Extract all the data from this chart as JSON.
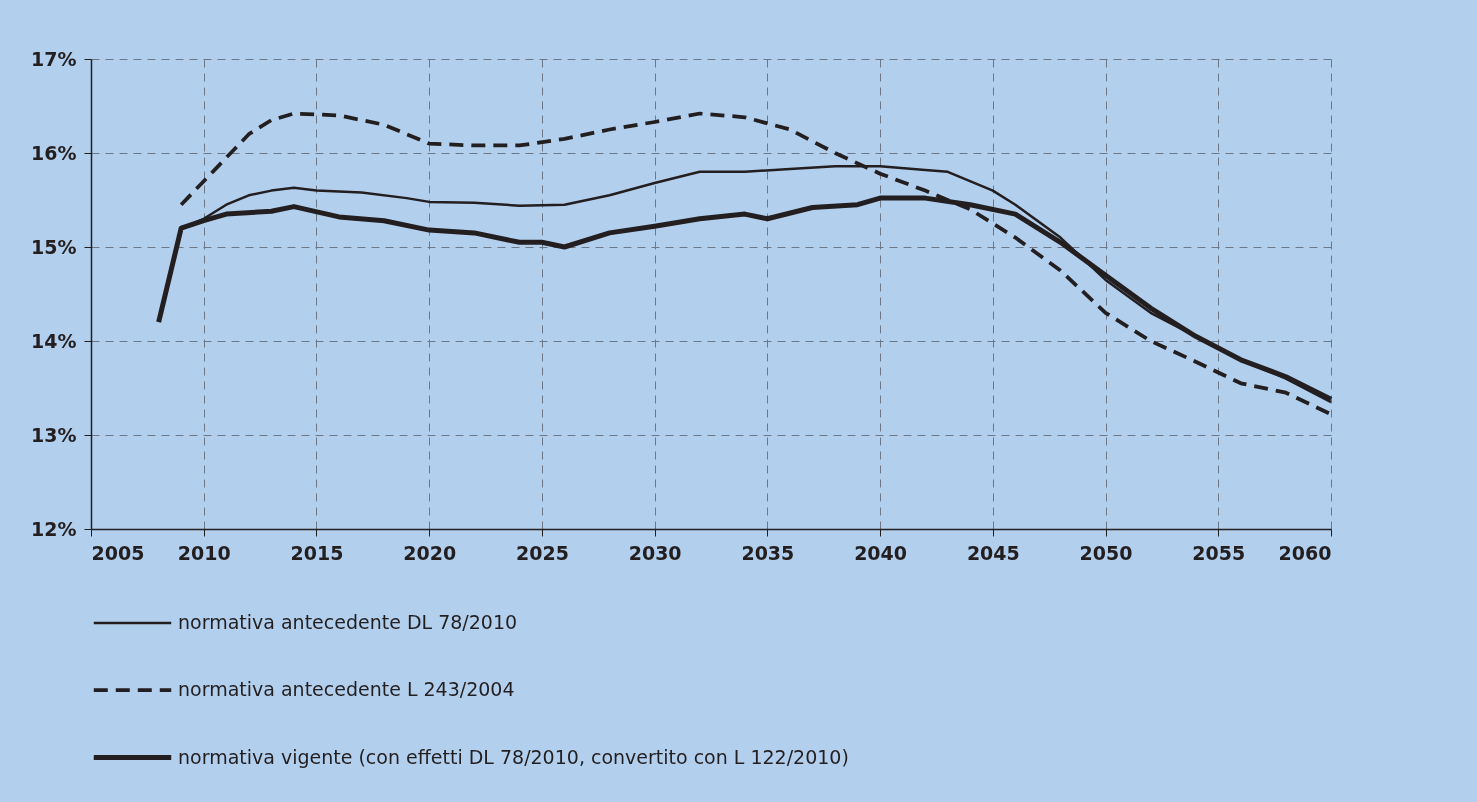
{
  "chart_data": {
    "type": "line",
    "xlim": [
      2005,
      2060
    ],
    "xticks": [
      2005,
      2010,
      2015,
      2020,
      2025,
      2030,
      2035,
      2040,
      2045,
      2050,
      2055,
      2060
    ],
    "ylim": [
      12,
      17
    ],
    "yticks": [
      {
        "value": 12,
        "label": "12%"
      },
      {
        "value": 13,
        "label": "13%"
      },
      {
        "value": 14,
        "label": "14%"
      },
      {
        "value": 15,
        "label": "15%"
      },
      {
        "value": 16,
        "label": "16%"
      },
      {
        "value": 17,
        "label": "17%"
      }
    ],
    "grid": true,
    "legend": "bottom",
    "marker": "none",
    "series": [
      {
        "name": "normativa antecedente DL 78/2010",
        "color": "#231f20",
        "line_style": "solid",
        "x": [
          2009,
          2010,
          2011,
          2012,
          2013,
          2014,
          2015,
          2017,
          2019,
          2020,
          2022,
          2024,
          2026,
          2028,
          2030,
          2032,
          2034,
          2036,
          2038,
          2040,
          2042,
          2043,
          2045,
          2046,
          2048,
          2050,
          2052,
          2054,
          2056,
          2058,
          2060
        ],
        "values": [
          15.2,
          15.3,
          15.45,
          15.55,
          15.6,
          15.63,
          15.6,
          15.58,
          15.52,
          15.48,
          15.47,
          15.44,
          15.45,
          15.55,
          15.68,
          15.8,
          15.8,
          15.83,
          15.86,
          15.86,
          15.82,
          15.8,
          15.6,
          15.45,
          15.1,
          14.65,
          14.3,
          14.05,
          13.8,
          13.6,
          13.35
        ]
      },
      {
        "name": "normativa antecedente L 243/2004",
        "color": "#231f20",
        "line_style": "dashed",
        "x": [
          2009,
          2010,
          2011,
          2012,
          2013,
          2014,
          2016,
          2018,
          2020,
          2022,
          2024,
          2026,
          2028,
          2030,
          2032,
          2034,
          2036,
          2038,
          2040,
          2042,
          2044,
          2046,
          2048,
          2050,
          2052,
          2054,
          2056,
          2058,
          2060
        ],
        "values": [
          15.45,
          15.7,
          15.95,
          16.2,
          16.35,
          16.42,
          16.4,
          16.3,
          16.1,
          16.08,
          16.08,
          16.15,
          16.25,
          16.33,
          16.42,
          16.38,
          16.25,
          16.0,
          15.78,
          15.6,
          15.4,
          15.1,
          14.75,
          14.3,
          14.0,
          13.78,
          13.55,
          13.45,
          13.22
        ]
      },
      {
        "name": "normativa vigente (con effetti DL 78/2010, convertito con L 122/2010)",
        "color": "#231f20",
        "line_style": "solid",
        "x": [
          2008,
          2009,
          2010,
          2011,
          2013,
          2014,
          2016,
          2018,
          2020,
          2022,
          2024,
          2025,
          2026,
          2028,
          2030,
          2032,
          2034,
          2035,
          2037,
          2039,
          2040,
          2042,
          2044,
          2046,
          2048,
          2050,
          2052,
          2054,
          2056,
          2058,
          2060
        ],
        "values": [
          14.2,
          15.2,
          15.28,
          15.35,
          15.38,
          15.43,
          15.32,
          15.28,
          15.18,
          15.15,
          15.05,
          15.05,
          15.0,
          15.15,
          15.22,
          15.3,
          15.35,
          15.3,
          15.42,
          15.45,
          15.52,
          15.52,
          15.45,
          15.35,
          15.05,
          14.7,
          14.35,
          14.05,
          13.8,
          13.62,
          13.38
        ]
      }
    ]
  }
}
